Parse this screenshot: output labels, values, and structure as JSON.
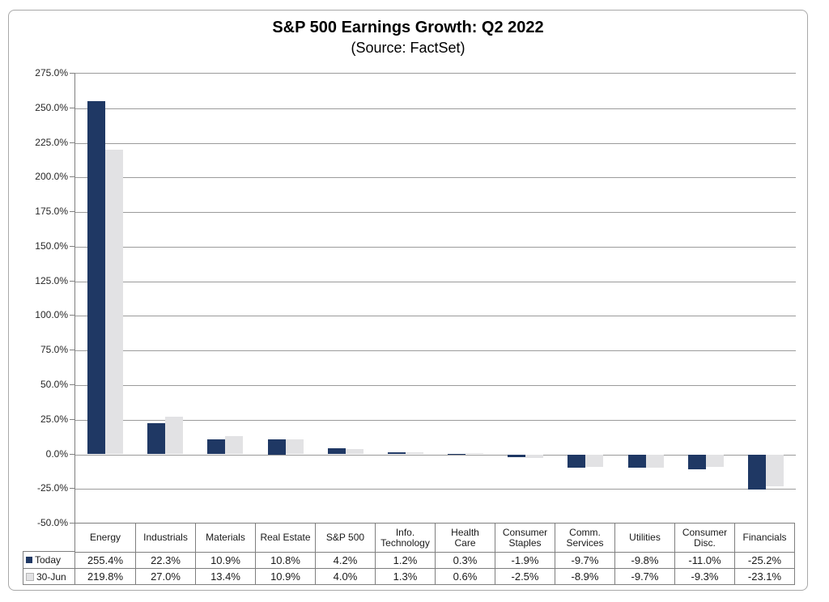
{
  "title": "S&P 500 Earnings Growth: Q2 2022",
  "subtitle": "(Source: FactSet)",
  "chart_data": {
    "type": "bar",
    "categories": [
      "Energy",
      "Industrials",
      "Materials",
      "Real Estate",
      "S&P 500",
      "Info.\nTechnology",
      "Health\nCare",
      "Consumer\nStaples",
      "Comm.\nServices",
      "Utilities",
      "Consumer\nDisc.",
      "Financials"
    ],
    "series": [
      {
        "name": "Today",
        "color": "#1F3864",
        "values": [
          255.4,
          22.3,
          10.9,
          10.8,
          4.2,
          1.2,
          0.3,
          -1.9,
          -9.7,
          -9.8,
          -11.0,
          -25.2
        ]
      },
      {
        "name": "30-Jun",
        "color": "#E2E2E4",
        "values": [
          219.8,
          27.0,
          13.4,
          10.9,
          4.0,
          1.3,
          0.6,
          -2.5,
          -8.9,
          -9.7,
          -9.3,
          -23.1
        ]
      }
    ],
    "xlabel": "",
    "ylabel": "",
    "ylim": [
      -50,
      275
    ],
    "ytick_step": 25,
    "ytick_suffix": "%",
    "value_format": "one_decimal_percent",
    "grid": true,
    "legend_position": "table-left-bottom"
  },
  "colors": {
    "bar_today": "#1F3864",
    "bar_30jun": "#E2E2E4",
    "gridline": "#9b9b9b",
    "border": "#7f7f7f"
  }
}
